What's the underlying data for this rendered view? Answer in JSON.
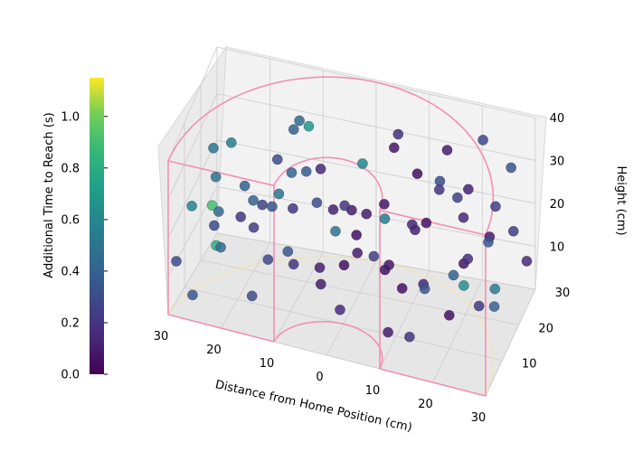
{
  "chart_data": {
    "type": "scatter3d",
    "title": "",
    "xlabel": "Distance from Home Position (cm)",
    "ylabel": "",
    "zlabel": "Height (cm)",
    "xlim": [
      -30,
      30
    ],
    "ylim": [
      0,
      30
    ],
    "zlim": [
      0,
      40
    ],
    "x_ticks": [
      "30",
      "20",
      "10",
      "0",
      "10",
      "20",
      "30"
    ],
    "y_ticks": [
      "10",
      "20",
      "30"
    ],
    "z_ticks": [
      "10",
      "20",
      "30",
      "40"
    ],
    "colorbar": {
      "label": "Additional Time to Reach (s)",
      "colormap": "viridis",
      "range": [
        0.0,
        1.15
      ],
      "ticks": [
        "0.0",
        "0.2",
        "0.4",
        "0.6",
        "0.8",
        "1.0"
      ]
    },
    "workspace_outline_color": "#f48fb1",
    "grid": true,
    "points": [
      [
        -22,
        5,
        25,
        0.45
      ],
      [
        -18,
        8,
        30,
        0.4
      ],
      [
        -10,
        3,
        35,
        0.5
      ],
      [
        -5,
        10,
        28,
        0.3
      ],
      [
        -15,
        15,
        20,
        0.35
      ],
      [
        -25,
        12,
        15,
        0.3
      ],
      [
        -20,
        20,
        10,
        0.25
      ],
      [
        -12,
        18,
        18,
        0.2
      ],
      [
        -8,
        22,
        25,
        0.15
      ],
      [
        -3,
        6,
        12,
        0.1
      ],
      [
        2,
        4,
        20,
        0.05
      ],
      [
        5,
        8,
        30,
        0.1
      ],
      [
        8,
        12,
        15,
        0.08
      ],
      [
        12,
        15,
        22,
        0.12
      ],
      [
        15,
        20,
        28,
        0.2
      ],
      [
        18,
        25,
        18,
        0.15
      ],
      [
        22,
        28,
        12,
        0.1
      ],
      [
        25,
        22,
        25,
        0.25
      ],
      [
        20,
        10,
        8,
        0.05
      ],
      [
        10,
        5,
        5,
        0.1
      ],
      [
        -28,
        8,
        22,
        0.6
      ],
      [
        -26,
        14,
        18,
        0.9
      ],
      [
        -24,
        10,
        12,
        0.8
      ],
      [
        -16,
        6,
        5,
        0.3
      ],
      [
        -6,
        15,
        8,
        0.1
      ],
      [
        0,
        18,
        15,
        0.05
      ],
      [
        4,
        22,
        20,
        0.08
      ],
      [
        9,
        26,
        25,
        0.05
      ],
      [
        14,
        28,
        30,
        0.1
      ],
      [
        26,
        18,
        5,
        0.4
      ],
      [
        28,
        12,
        15,
        0.55
      ],
      [
        24,
        6,
        20,
        0.65
      ],
      [
        20,
        15,
        32,
        0.25
      ],
      [
        -14,
        25,
        30,
        0.4
      ],
      [
        -18,
        28,
        20,
        0.3
      ],
      [
        -10,
        12,
        10,
        0.2
      ],
      [
        -2,
        25,
        5,
        0.1
      ],
      [
        6,
        16,
        10,
        0.05
      ],
      [
        16,
        8,
        15,
        0.35
      ],
      [
        12,
        20,
        5,
        0.15
      ],
      [
        -21,
        3,
        18,
        0.45
      ],
      [
        -8,
        2,
        22,
        0.35
      ],
      [
        1,
        2,
        30,
        0.5
      ],
      [
        10,
        3,
        35,
        0.55
      ],
      [
        23,
        3,
        25,
        0.4
      ],
      [
        -27,
        18,
        28,
        0.5
      ],
      [
        -12,
        22,
        35,
        0.45
      ],
      [
        3,
        12,
        38,
        0.6
      ],
      [
        17,
        14,
        36,
        0.3
      ],
      [
        27,
        25,
        32,
        0.35
      ],
      [
        -24,
        25,
        8,
        0.2
      ],
      [
        -4,
        28,
        12,
        0.1
      ],
      [
        8,
        20,
        3,
        0.05
      ],
      [
        19,
        22,
        10,
        0.08
      ],
      [
        29,
        20,
        22,
        0.25
      ],
      [
        -30,
        5,
        10,
        0.3
      ],
      [
        -17,
        10,
        25,
        0.4
      ],
      [
        -1,
        14,
        25,
        0.2
      ],
      [
        13,
        10,
        28,
        0.15
      ],
      [
        28,
        8,
        30,
        0.35
      ],
      [
        -23,
        16,
        32,
        0.55
      ],
      [
        -9,
        18,
        38,
        0.7
      ],
      [
        7,
        6,
        22,
        0.25
      ],
      [
        21,
        18,
        15,
        0.18
      ],
      [
        -13,
        6,
        15,
        0.28
      ],
      [
        -5,
        20,
        18,
        0.12
      ],
      [
        11,
        25,
        15,
        0.06
      ],
      [
        25,
        12,
        10,
        0.22
      ],
      [
        -19,
        22,
        14,
        0.26
      ],
      [
        4,
        28,
        28,
        0.08
      ],
      [
        -26,
        2,
        5,
        0.35
      ],
      [
        15,
        2,
        8,
        0.2
      ],
      [
        0,
        8,
        5,
        0.15
      ],
      [
        -11,
        14,
        30,
        0.42
      ],
      [
        18,
        28,
        22,
        0.12
      ],
      [
        -29,
        26,
        15,
        0.5
      ],
      [
        6,
        24,
        35,
        0.18
      ],
      [
        22,
        24,
        38,
        0.28
      ],
      [
        -7,
        10,
        35,
        0.38
      ],
      [
        29,
        28,
        8,
        0.15
      ]
    ]
  }
}
